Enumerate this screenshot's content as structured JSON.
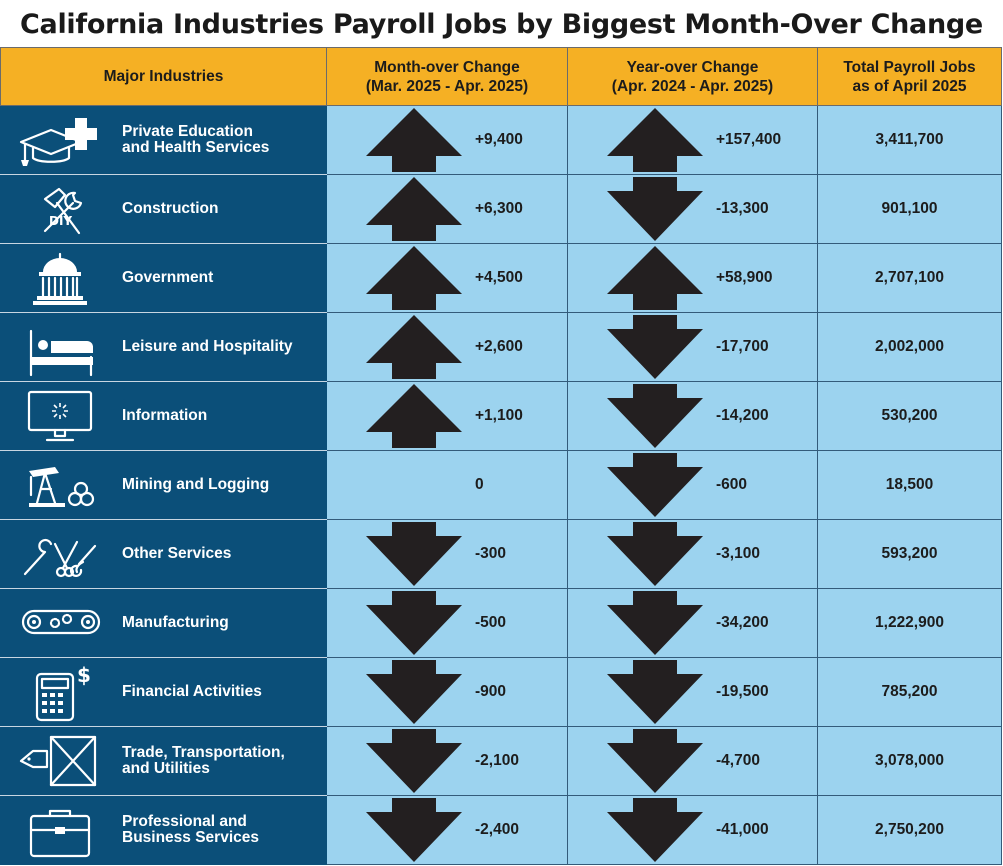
{
  "title": "California Industries Payroll Jobs by Biggest Month-Over Change",
  "colors": {
    "header_bg": "#f5b024",
    "industry_bg": "#0b4f79",
    "cell_bg": "#9cd3ef",
    "arrow": "#231f20"
  },
  "columns": {
    "industry": "Major Industries",
    "mom_line1": "Month-over Change",
    "mom_line2": "(Mar. 2025 - Apr. 2025)",
    "yoy_line1": "Year-over Change",
    "yoy_line2": "(Apr. 2024 - Apr. 2025)",
    "total_line1": "Total Payroll Jobs",
    "total_line2": "as of April 2025"
  },
  "chart_data": {
    "type": "table",
    "title": "California Industries Payroll Jobs by Biggest Month-Over Change",
    "rows": [
      {
        "industry": "Private Education\nand Health Services",
        "icon": "graduation-cap-medical-cross-icon",
        "mom": 9400,
        "mom_label": "+9,400",
        "yoy": 157400,
        "yoy_label": "+157,400",
        "total": "3,411,700"
      },
      {
        "industry": "Construction",
        "icon": "hammer-wrench-icon",
        "mom": 6300,
        "mom_label": "+6,300",
        "yoy": -13300,
        "yoy_label": "-13,300",
        "total": "901,100"
      },
      {
        "industry": "Government",
        "icon": "capitol-building-icon",
        "mom": 4500,
        "mom_label": "+4,500",
        "yoy": 58900,
        "yoy_label": "+58,900",
        "total": "2,707,100"
      },
      {
        "industry": "Leisure and Hospitality",
        "icon": "hotel-bed-icon",
        "mom": 2600,
        "mom_label": "+2,600",
        "yoy": -17700,
        "yoy_label": "-17,700",
        "total": "2,002,000"
      },
      {
        "industry": "Information",
        "icon": "computer-monitor-icon",
        "mom": 1100,
        "mom_label": "+1,100",
        "yoy": -14200,
        "yoy_label": "-14,200",
        "total": "530,200"
      },
      {
        "industry": "Mining and Logging",
        "icon": "oil-pump-logs-icon",
        "mom": 0,
        "mom_label": "0",
        "yoy": -600,
        "yoy_label": "-600",
        "total": "18,500"
      },
      {
        "industry": "Other Services",
        "icon": "tools-scissors-icon",
        "mom": -300,
        "mom_label": "-300",
        "yoy": -3100,
        "yoy_label": "-3,100",
        "total": "593,200"
      },
      {
        "industry": "Manufacturing",
        "icon": "conveyor-gears-icon",
        "mom": -500,
        "mom_label": "-500",
        "yoy": -34200,
        "yoy_label": "-34,200",
        "total": "1,222,900"
      },
      {
        "industry": "Financial Activities",
        "icon": "calculator-dollar-icon",
        "mom": -900,
        "mom_label": "-900",
        "yoy": -19500,
        "yoy_label": "-19,500",
        "total": "785,200"
      },
      {
        "industry": "Trade, Transportation,\nand Utilities",
        "icon": "shipping-crate-tag-icon",
        "mom": -2100,
        "mom_label": "-2,100",
        "yoy": -4700,
        "yoy_label": "-4,700",
        "total": "3,078,000"
      },
      {
        "industry": "Professional and\nBusiness Services",
        "icon": "briefcase-icon",
        "mom": -2400,
        "mom_label": "-2,400",
        "yoy": -41000,
        "yoy_label": "-41,000",
        "total": "2,750,200"
      }
    ]
  }
}
